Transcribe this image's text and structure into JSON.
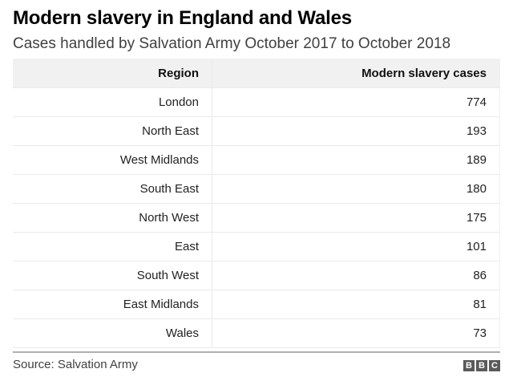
{
  "header": {
    "title": "Modern slavery in England and Wales",
    "subtitle": "Cases handled by Salvation Army October 2017 to October 2018"
  },
  "table": {
    "columns": [
      "Region",
      "Modern slavery cases"
    ],
    "rows": [
      {
        "region": "London",
        "cases": "774"
      },
      {
        "region": "North East",
        "cases": "193"
      },
      {
        "region": "West Midlands",
        "cases": "189"
      },
      {
        "region": "South East",
        "cases": "180"
      },
      {
        "region": "North West",
        "cases": "175"
      },
      {
        "region": "East",
        "cases": "101"
      },
      {
        "region": "South West",
        "cases": "86"
      },
      {
        "region": "East Midlands",
        "cases": "81"
      },
      {
        "region": "Wales",
        "cases": "73"
      }
    ]
  },
  "footer": {
    "source": "Source: Salvation Army",
    "logo": [
      "B",
      "B",
      "C"
    ]
  },
  "chart_data": {
    "type": "table",
    "title": "Modern slavery in England and Wales",
    "subtitle": "Cases handled by Salvation Army October 2017 to October 2018",
    "columns": [
      "Region",
      "Modern slavery cases"
    ],
    "categories": [
      "London",
      "North East",
      "West Midlands",
      "South East",
      "North West",
      "East",
      "South West",
      "East Midlands",
      "Wales"
    ],
    "values": [
      774,
      193,
      189,
      180,
      175,
      101,
      86,
      81,
      73
    ],
    "source": "Salvation Army"
  }
}
